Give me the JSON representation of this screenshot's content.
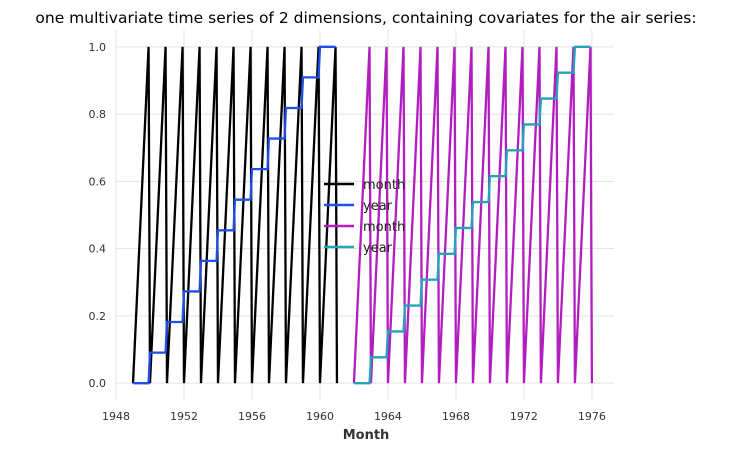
{
  "chart_data": {
    "type": "line",
    "title": "one multivariate time series of 2 dimensions, containing covariates for the air series:",
    "xlabel": "Month",
    "ylabel": "",
    "xlim": [
      1948,
      1977.3
    ],
    "ylim": [
      -0.05,
      1.05
    ],
    "grid": true,
    "legend_position": "center",
    "x_ticks": [
      1948,
      1952,
      1956,
      1960,
      1964,
      1968,
      1972,
      1976
    ],
    "y_ticks": [
      0.0,
      0.2,
      0.4,
      0.6,
      0.8,
      1.0
    ],
    "x_tick_labels": [
      "1948",
      "1952",
      "1956",
      "1960",
      "1964",
      "1968",
      "1972",
      "1976"
    ],
    "y_tick_labels": [
      "0.0",
      "0.2",
      "0.4",
      "0.6",
      "0.8",
      "1.0"
    ],
    "series": [
      {
        "name": "month",
        "kind": "monthly-sawtooth",
        "color": "#000000",
        "start_year": 1949,
        "end_year": 1960,
        "description": "rises 0 to 1 each year, drops to 0 at year start"
      },
      {
        "name": "year",
        "kind": "yearly-step",
        "color": "#1f4ee8",
        "start_year": 1949,
        "end_year": 1960,
        "values": [
          0.0,
          0.0909,
          0.1818,
          0.2727,
          0.3636,
          0.4545,
          0.5455,
          0.6364,
          0.7273,
          0.8182,
          0.9091,
          1.0
        ]
      },
      {
        "name": "month",
        "kind": "monthly-sawtooth",
        "color": "#b21dbf",
        "start_year": 1962,
        "end_year": 1975,
        "description": "rises 0 to 1 each year, drops to 0 at year start"
      },
      {
        "name": "year",
        "kind": "yearly-step",
        "color": "#22a3b8",
        "start_year": 1962,
        "end_year": 1975,
        "values": [
          0.0,
          0.0769,
          0.1538,
          0.2308,
          0.3077,
          0.3846,
          0.4615,
          0.5385,
          0.6154,
          0.6923,
          0.7692,
          0.8462,
          0.9231,
          1.0
        ]
      }
    ]
  }
}
